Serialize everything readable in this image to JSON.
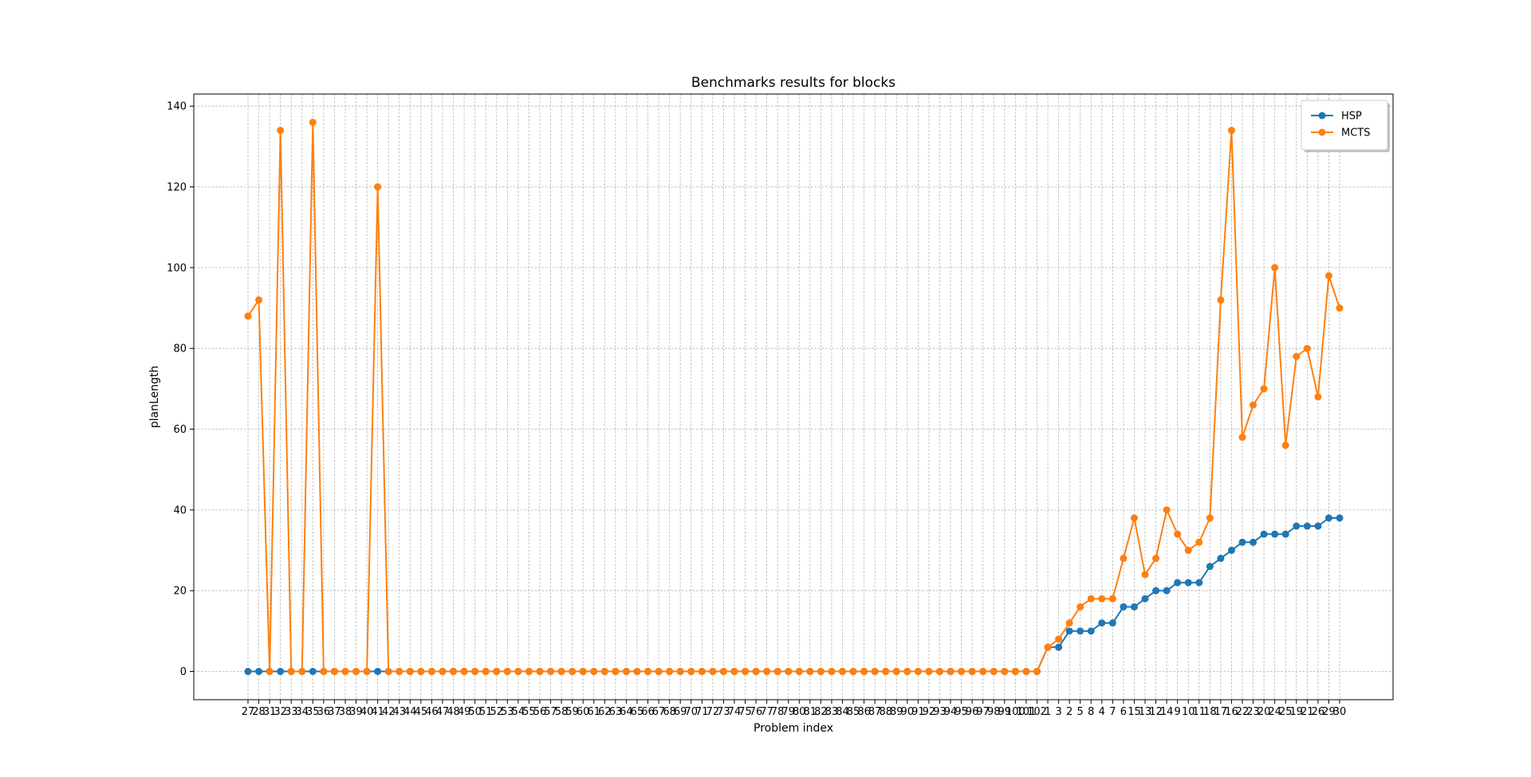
{
  "chart_data": {
    "type": "line",
    "title": "Benchmarks results for blocks",
    "xlabel": "Problem index",
    "ylabel": "planLength",
    "ylim": [
      -7,
      143
    ],
    "yticks": [
      0,
      20,
      40,
      60,
      80,
      100,
      120,
      140
    ],
    "grid": true,
    "legend_position": "top-right",
    "categories": [
      "27",
      "28",
      "31",
      "32",
      "33",
      "34",
      "35",
      "36",
      "37",
      "38",
      "39",
      "40",
      "41",
      "42",
      "43",
      "44",
      "45",
      "46",
      "47",
      "48",
      "49",
      "50",
      "51",
      "52",
      "53",
      "54",
      "55",
      "56",
      "57",
      "58",
      "59",
      "60",
      "61",
      "62",
      "63",
      "64",
      "65",
      "66",
      "67",
      "68",
      "69",
      "70",
      "71",
      "72",
      "73",
      "74",
      "75",
      "76",
      "77",
      "78",
      "79",
      "80",
      "81",
      "82",
      "83",
      "84",
      "85",
      "86",
      "87",
      "88",
      "89",
      "90",
      "91",
      "92",
      "93",
      "94",
      "95",
      "96",
      "97",
      "98",
      "99",
      "100",
      "101",
      "102",
      "1",
      "3",
      "2",
      "5",
      "8",
      "4",
      "7",
      "6",
      "15",
      "13",
      "12",
      "14",
      "9",
      "10",
      "11",
      "18",
      "17",
      "16",
      "22",
      "23",
      "20",
      "24",
      "25",
      "19",
      "21",
      "26",
      "29",
      "30"
    ],
    "series": [
      {
        "name": "HSP",
        "color": "#1f77b4",
        "values": [
          0,
          0,
          0,
          0,
          0,
          0,
          0,
          0,
          0,
          0,
          0,
          0,
          0,
          0,
          0,
          0,
          0,
          0,
          0,
          0,
          0,
          0,
          0,
          0,
          0,
          0,
          0,
          0,
          0,
          0,
          0,
          0,
          0,
          0,
          0,
          0,
          0,
          0,
          0,
          0,
          0,
          0,
          0,
          0,
          0,
          0,
          0,
          0,
          0,
          0,
          0,
          0,
          0,
          0,
          0,
          0,
          0,
          0,
          0,
          0,
          0,
          0,
          0,
          0,
          0,
          0,
          0,
          0,
          0,
          0,
          0,
          0,
          0,
          0,
          6,
          6,
          10,
          10,
          10,
          12,
          12,
          16,
          16,
          18,
          20,
          20,
          22,
          22,
          22,
          26,
          28,
          30,
          32,
          32,
          34,
          34,
          34,
          36,
          36,
          36,
          38,
          38
        ]
      },
      {
        "name": "MCTS",
        "color": "#ff7f0e",
        "values": [
          88,
          92,
          0,
          134,
          0,
          0,
          136,
          0,
          0,
          0,
          0,
          0,
          120,
          0,
          0,
          0,
          0,
          0,
          0,
          0,
          0,
          0,
          0,
          0,
          0,
          0,
          0,
          0,
          0,
          0,
          0,
          0,
          0,
          0,
          0,
          0,
          0,
          0,
          0,
          0,
          0,
          0,
          0,
          0,
          0,
          0,
          0,
          0,
          0,
          0,
          0,
          0,
          0,
          0,
          0,
          0,
          0,
          0,
          0,
          0,
          0,
          0,
          0,
          0,
          0,
          0,
          0,
          0,
          0,
          0,
          0,
          0,
          0,
          0,
          6,
          8,
          12,
          16,
          18,
          18,
          18,
          28,
          38,
          24,
          28,
          40,
          34,
          30,
          32,
          38,
          92,
          134,
          58,
          66,
          70,
          100,
          56,
          78,
          80,
          68,
          98,
          90
        ]
      }
    ]
  }
}
